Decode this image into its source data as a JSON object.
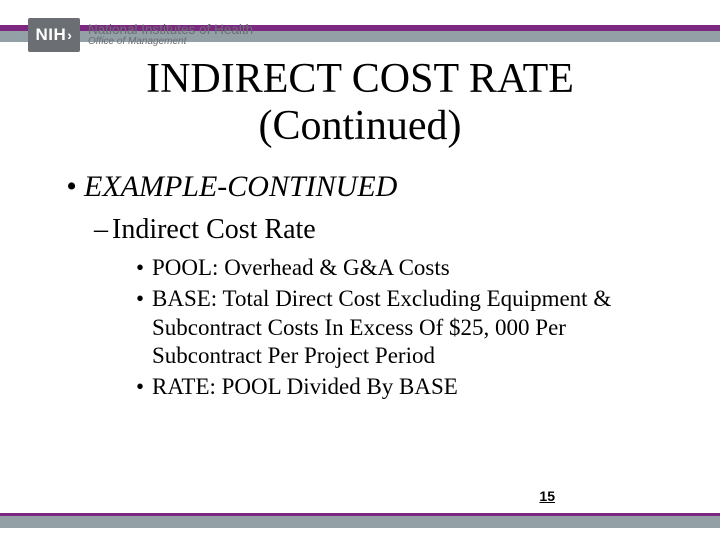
{
  "header": {
    "logo_abbrev": "NIH",
    "logo_main": "National Institutes of Health",
    "logo_sub": "Office of Management"
  },
  "colors": {
    "purple": "#7d2880",
    "gray": "#93a0a6",
    "logo_gray": "#6b6e73",
    "text": "#000000",
    "background": "#ffffff"
  },
  "title": {
    "line1": "INDIRECT COST RATE",
    "line2": "(Continued)"
  },
  "content": {
    "level1": "EXAMPLE-CONTINUED",
    "level2": "Indirect Cost Rate",
    "level3": [
      "POOL: Overhead & G&A Costs",
      "BASE: Total Direct Cost Excluding Equipment & Subcontract Costs In Excess Of $25, 000 Per Subcontract  Per Project Period",
      "RATE: POOL Divided By BASE"
    ]
  },
  "page_number": "15"
}
